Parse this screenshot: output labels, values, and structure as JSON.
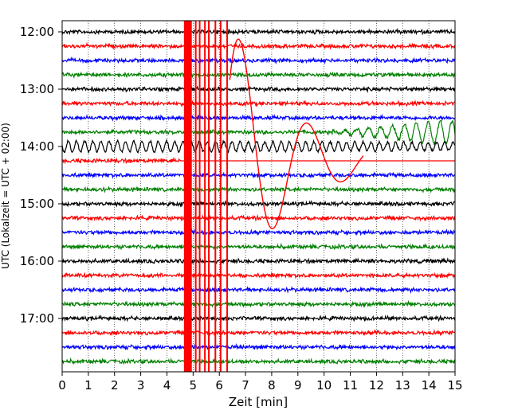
{
  "chart_data": {
    "type": "line",
    "chart_kind": "helicorder / seismogram trace plot",
    "xlabel": "Zeit  [min]",
    "ylabel": "UTC (Lokalzeit = UTC + 02:00)",
    "xlim": [
      0,
      15
    ],
    "x_ticks": [
      0,
      1,
      2,
      3,
      4,
      5,
      6,
      7,
      8,
      9,
      10,
      11,
      12,
      13,
      14,
      15
    ],
    "y_ticks": [
      "12:00",
      "13:00",
      "14:00",
      "15:00",
      "16:00",
      "17:00"
    ],
    "grid": "vertical dotted lines at each minute",
    "trace_interval_min": 15,
    "trace_colors_cycle": [
      "#000000",
      "#ff0000",
      "#0000ff",
      "#008000"
    ],
    "series": [
      {
        "start": "12:00",
        "color": "#000000",
        "amplitude": "low"
      },
      {
        "start": "12:15",
        "color": "#ff0000",
        "amplitude": "low"
      },
      {
        "start": "12:30",
        "color": "#0000ff",
        "amplitude": "low"
      },
      {
        "start": "12:45",
        "color": "#008000",
        "amplitude": "low"
      },
      {
        "start": "13:00",
        "color": "#000000",
        "amplitude": "low"
      },
      {
        "start": "13:15",
        "color": "#ff0000",
        "amplitude": "low"
      },
      {
        "start": "13:30",
        "color": "#0000ff",
        "amplitude": "low"
      },
      {
        "start": "13:45",
        "color": "#008000",
        "amplitude": "increasing oscillation after minute 10"
      },
      {
        "start": "14:00",
        "color": "#000000",
        "amplitude": "elevated wave train"
      },
      {
        "start": "14:15",
        "color": "#ff0000",
        "amplitude": "event, large clipped signal from minute 4.6"
      },
      {
        "start": "14:30",
        "color": "#0000ff",
        "amplitude": "low"
      },
      {
        "start": "14:45",
        "color": "#008000",
        "amplitude": "low"
      },
      {
        "start": "15:00",
        "color": "#000000",
        "amplitude": "low"
      },
      {
        "start": "15:15",
        "color": "#ff0000",
        "amplitude": "low"
      },
      {
        "start": "15:30",
        "color": "#0000ff",
        "amplitude": "low"
      },
      {
        "start": "15:45",
        "color": "#008000",
        "amplitude": "low"
      },
      {
        "start": "16:00",
        "color": "#000000",
        "amplitude": "low"
      },
      {
        "start": "16:15",
        "color": "#ff0000",
        "amplitude": "low"
      },
      {
        "start": "16:30",
        "color": "#0000ff",
        "amplitude": "low"
      },
      {
        "start": "16:45",
        "color": "#008000",
        "amplitude": "low"
      },
      {
        "start": "17:00",
        "color": "#000000",
        "amplitude": "low"
      },
      {
        "start": "17:15",
        "color": "#ff0000",
        "amplitude": "low"
      },
      {
        "start": "17:30",
        "color": "#0000ff",
        "amplitude": "low"
      },
      {
        "start": "17:45",
        "color": "#008000",
        "amplitude": "low"
      }
    ],
    "event": {
      "trace_start": "14:15",
      "color": "#ff0000",
      "clipped_from_min": 4.6,
      "clipped_to_min": 6.4,
      "long_period_wave_min": [
        6.4,
        11.5
      ]
    }
  }
}
